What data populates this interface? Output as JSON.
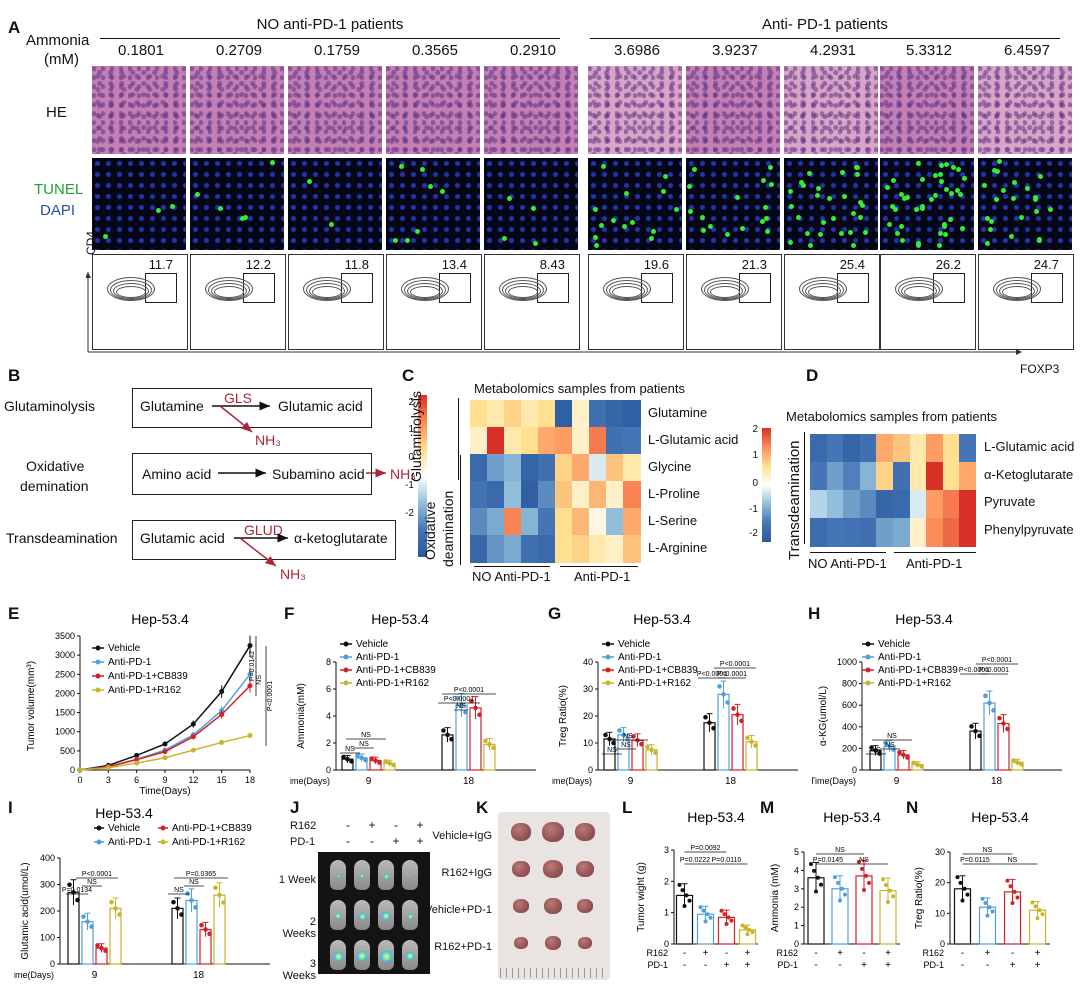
{
  "panel_labels": {
    "A": "A",
    "B": "B",
    "C": "C",
    "D": "D",
    "E": "E",
    "F": "F",
    "G": "G",
    "H": "H",
    "I": "I",
    "J": "J",
    "K": "K",
    "L": "L",
    "M": "M",
    "N": "N"
  },
  "panelA": {
    "ammonia_label_1": "Ammonia",
    "ammonia_label_2": "(mM)",
    "group_no": "NO anti-PD-1 patients",
    "group_yes": "Anti- PD-1 patients",
    "ammonia_values": [
      "0.1801",
      "0.2709",
      "0.1759",
      "0.3565",
      "0.2910",
      "3.6986",
      "3.9237",
      "4.2931",
      "5.3312",
      "6.4597"
    ],
    "row_he": "HE",
    "row_tunel": "TUNEL",
    "row_dapi": "DAPI",
    "flow_values": [
      "11.7",
      "12.2",
      "11.8",
      "13.4",
      "8.43",
      "19.6",
      "21.3",
      "25.4",
      "26.2",
      "24.7"
    ],
    "y_axis": "CD4",
    "x_axis": "FOXP3"
  },
  "panelB": {
    "rows": [
      {
        "name": "Glutaminolysis",
        "left": "Glutamine",
        "enzyme": "GLS",
        "right": "Glutamic acid",
        "product": "NH₃"
      },
      {
        "name1": "Oxidative",
        "name2": "demination",
        "left": "Amino acid",
        "right": "Subamino acid",
        "product": "NH₃"
      },
      {
        "name": "Transdeamination",
        "left": "Glutamic acid",
        "enzyme": "GLUD",
        "right": "α-ketoglutarate",
        "product": "NH₃"
      }
    ]
  },
  "panelC": {
    "title": "Metabolomics samples from patients",
    "scale": [
      "2",
      "1",
      "0",
      "-1",
      "-2"
    ],
    "group_top": "Glutaminolysis",
    "group_bottom1": "Oxidative",
    "group_bottom2": "deamination",
    "rows": [
      "Glutamine",
      "L-Glutamic acid",
      "Glycine",
      "L-Proline",
      "L-Serine",
      "L-Arginine"
    ],
    "x_groups": [
      "NO Anti-PD-1",
      "Anti-PD-1"
    ]
  },
  "panelD": {
    "title": "Metabolomics samples from patients",
    "scale": [
      "2",
      "1",
      "0",
      "-1",
      "-2"
    ],
    "group": "Transdeamination",
    "rows": [
      "L-Glutamic acid",
      "α-Ketoglutarate",
      "Pyruvate",
      "Phenylpyruvate"
    ],
    "x_groups": [
      "NO Anti-PD-1",
      "Anti-PD-1"
    ]
  },
  "legend4": [
    "Vehicle",
    "Anti-PD-1",
    "Anti-PD-1+CB839",
    "Anti-PD-1+R162"
  ],
  "colors": {
    "vehicle": "#111111",
    "antipd1": "#4f9fe0",
    "cb839": "#d62027",
    "r162": "#c9b52a"
  },
  "panelJ": {
    "r162_label": "R162",
    "pd1_label": "PD-1",
    "r162": [
      "-",
      "+",
      "-",
      "+"
    ],
    "pd1": [
      "-",
      "-",
      "+",
      "+"
    ],
    "weeks": [
      "1 Week",
      "2 Weeks",
      "3 Weeks"
    ]
  },
  "panelK": {
    "rows": [
      "Vehicle+IgG",
      "R162+IgG",
      "Vehicle+PD-1",
      "R162+PD-1"
    ]
  },
  "chart_data": [
    {
      "panel": "E",
      "type": "line",
      "title": "Hep-53.4",
      "xlabel": "Time(Days)",
      "ylabel": "Tumor volume(mm³)",
      "x": [
        0,
        3,
        6,
        9,
        12,
        15,
        18
      ],
      "ylim": [
        0,
        3500
      ],
      "yticks": [
        0,
        500,
        1000,
        1500,
        2000,
        2500,
        3000,
        3500
      ],
      "series": [
        {
          "name": "Vehicle",
          "values": [
            0,
            120,
            380,
            680,
            1200,
            2050,
            3250
          ]
        },
        {
          "name": "Anti-PD-1",
          "values": [
            0,
            90,
            280,
            520,
            920,
            1550,
            2500
          ]
        },
        {
          "name": "Anti-PD-1+CB839",
          "values": [
            0,
            85,
            270,
            480,
            870,
            1450,
            2200
          ]
        },
        {
          "name": "Anti-PD-1+R162",
          "values": [
            0,
            60,
            180,
            320,
            520,
            720,
            900
          ]
        }
      ],
      "annotations": [
        "P=0.0142",
        "NS",
        "P<0.0001"
      ]
    },
    {
      "panel": "F",
      "type": "bar",
      "title": "Hep-53.4",
      "ylabel": "Ammonia(mM)",
      "xlabel": "Time(Days)",
      "categories": [
        "9",
        "18"
      ],
      "ylim": [
        0,
        8
      ],
      "yticks": [
        0,
        2,
        4,
        6,
        8
      ],
      "series": [
        {
          "name": "Vehicle",
          "values": [
            0.8,
            2.6
          ]
        },
        {
          "name": "Anti-PD-1",
          "values": [
            0.9,
            4.8
          ]
        },
        {
          "name": "Anti-PD-1+CB839",
          "values": [
            0.7,
            4.6
          ]
        },
        {
          "name": "Anti-PD-1+R162",
          "values": [
            0.5,
            1.9
          ]
        }
      ],
      "annotations": [
        "NS",
        "NS",
        "NS",
        "P<0.0001",
        "NS",
        "P<0.0001"
      ]
    },
    {
      "panel": "G",
      "type": "bar",
      "title": "Hep-53.4",
      "ylabel": "Treg Ratio(%)",
      "xlabel": "Time(Days)",
      "categories": [
        "9",
        "18"
      ],
      "ylim": [
        0,
        40
      ],
      "yticks": [
        0,
        10,
        20,
        30,
        40
      ],
      "series": [
        {
          "name": "Vehicle",
          "values": [
            11.5,
            17.5
          ]
        },
        {
          "name": "Anti-PD-1",
          "values": [
            13,
            28
          ]
        },
        {
          "name": "Anti-PD-1+CB839",
          "values": [
            11,
            20.5
          ]
        },
        {
          "name": "Anti-PD-1+R162",
          "values": [
            7.5,
            10.5
          ]
        }
      ],
      "annotations": [
        "NS",
        "NS",
        "NS",
        "P<0.0001",
        "P<0.0001",
        "P<0.0001"
      ]
    },
    {
      "panel": "H",
      "type": "bar",
      "title": "Hep-53.4",
      "ylabel": "α-KG(umol/L)",
      "xlabel": "Time(Days)",
      "categories": [
        "9",
        "18"
      ],
      "ylim": [
        0,
        1000
      ],
      "yticks": [
        0,
        200,
        400,
        600,
        800,
        1000
      ],
      "series": [
        {
          "name": "Vehicle",
          "values": [
            180,
            360
          ]
        },
        {
          "name": "Anti-PD-1",
          "values": [
            220,
            620
          ]
        },
        {
          "name": "Anti-PD-1+CB839",
          "values": [
            140,
            430
          ]
        },
        {
          "name": "Anti-PD-1+R162",
          "values": [
            50,
            70
          ]
        }
      ],
      "annotations": [
        "NS",
        "NS",
        "NS",
        "P<0.0001",
        "P<0.0001",
        "P<0.0001"
      ]
    },
    {
      "panel": "I",
      "type": "bar",
      "title": "Hep-53.4",
      "ylabel": "Glutamic acid(umol/L)",
      "xlabel": "Time(Days)",
      "categories": [
        "9",
        "18"
      ],
      "ylim": [
        0,
        400
      ],
      "yticks": [
        0,
        100,
        200,
        300,
        400
      ],
      "series": [
        {
          "name": "Vehicle",
          "values": [
            270,
            210
          ]
        },
        {
          "name": "Anti-PD-1",
          "values": [
            160,
            240
          ]
        },
        {
          "name": "Anti-PD-1+CB839",
          "values": [
            60,
            130
          ]
        },
        {
          "name": "Anti-PD-1+R162",
          "values": [
            210,
            260
          ]
        }
      ],
      "annotations": [
        "P=0.0134",
        "NS",
        "P<0.0001",
        "NS",
        "NS",
        "P=0.0365"
      ]
    },
    {
      "panel": "L",
      "type": "bar",
      "title": "Hep-53.4",
      "ylabel": "Tumor wight (g)",
      "categories": [
        "1",
        "2",
        "3",
        "4"
      ],
      "ylim": [
        0,
        3
      ],
      "yticks": [
        0,
        1,
        2,
        3
      ],
      "values": [
        1.55,
        0.95,
        0.85,
        0.45
      ],
      "r162": [
        "-",
        "+",
        "-",
        "+"
      ],
      "pd1": [
        "-",
        "-",
        "+",
        "+"
      ],
      "annotations": [
        "P=0.0092",
        "P=0.0222",
        "P=0.0110"
      ]
    },
    {
      "panel": "M",
      "type": "bar",
      "title": "Hep-53.4",
      "ylabel": "Ammonia (mM)",
      "categories": [
        "1",
        "2",
        "3",
        "4"
      ],
      "ylim": [
        0,
        5
      ],
      "yticks": [
        0,
        1,
        2,
        3,
        4,
        5
      ],
      "values": [
        3.6,
        3.0,
        3.7,
        2.9
      ],
      "r162": [
        "-",
        "+",
        "-",
        "+"
      ],
      "pd1": [
        "-",
        "-",
        "+",
        "+"
      ],
      "annotations": [
        "NS",
        "P=0.0145",
        "NS"
      ]
    },
    {
      "panel": "N",
      "type": "bar",
      "title": "Hep-53.4",
      "ylabel": "Treg Ratio(%)",
      "categories": [
        "1",
        "2",
        "3",
        "4"
      ],
      "ylim": [
        0,
        30
      ],
      "yticks": [
        0,
        10,
        20,
        30
      ],
      "values": [
        18,
        12,
        17,
        11
      ],
      "r162": [
        "-",
        "+",
        "-",
        "+"
      ],
      "pd1": [
        "-",
        "-",
        "+",
        "+"
      ],
      "annotations": [
        "NS",
        "P=0.0115",
        "NS"
      ]
    }
  ]
}
